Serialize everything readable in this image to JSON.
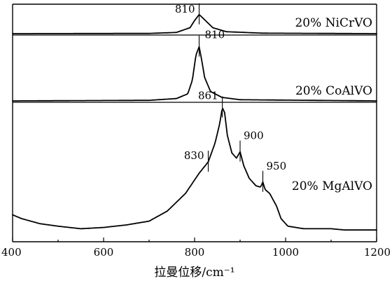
{
  "chart_data": {
    "type": "line",
    "xlabel": "拉曼位移/cm⁻¹",
    "xlim": [
      400,
      1200
    ],
    "xticks": [
      "400",
      "600",
      "800",
      "1000",
      "1200"
    ],
    "xtick_values": [
      400,
      600,
      800,
      1000,
      1200
    ],
    "ylabel": "",
    "grid": false,
    "legend": "none",
    "series": [
      {
        "name": "20% NiCrVO",
        "points": [
          [
            400,
            0.0
          ],
          [
            700,
            0.01
          ],
          [
            760,
            0.05
          ],
          [
            790,
            0.25
          ],
          [
            800,
            0.55
          ],
          [
            810,
            0.8
          ],
          [
            820,
            0.62
          ],
          [
            840,
            0.25
          ],
          [
            870,
            0.08
          ],
          [
            950,
            0.02
          ],
          [
            1200,
            0.0
          ]
        ],
        "peaks": [
          {
            "x": 810,
            "label": "810"
          }
        ]
      },
      {
        "name": "20% CoAlVO",
        "points": [
          [
            400,
            0.0
          ],
          [
            700,
            0.01
          ],
          [
            760,
            0.04
          ],
          [
            785,
            0.12
          ],
          [
            795,
            0.35
          ],
          [
            803,
            0.78
          ],
          [
            810,
            0.92
          ],
          [
            815,
            0.72
          ],
          [
            822,
            0.4
          ],
          [
            835,
            0.16
          ],
          [
            860,
            0.06
          ],
          [
            900,
            0.02
          ],
          [
            1200,
            0.0
          ]
        ],
        "peaks": [
          {
            "x": 810,
            "label": "810"
          }
        ]
      },
      {
        "name": "20% MgAlVO",
        "points": [
          [
            400,
            0.13
          ],
          [
            420,
            0.1
          ],
          [
            460,
            0.06
          ],
          [
            500,
            0.04
          ],
          [
            550,
            0.02
          ],
          [
            600,
            0.03
          ],
          [
            650,
            0.05
          ],
          [
            700,
            0.08
          ],
          [
            740,
            0.16
          ],
          [
            780,
            0.3
          ],
          [
            810,
            0.46
          ],
          [
            830,
            0.55
          ],
          [
            845,
            0.7
          ],
          [
            855,
            0.85
          ],
          [
            861,
            0.98
          ],
          [
            866,
            0.94
          ],
          [
            872,
            0.76
          ],
          [
            882,
            0.62
          ],
          [
            892,
            0.58
          ],
          [
            900,
            0.63
          ],
          [
            908,
            0.52
          ],
          [
            920,
            0.42
          ],
          [
            935,
            0.36
          ],
          [
            945,
            0.35
          ],
          [
            950,
            0.39
          ],
          [
            955,
            0.33
          ],
          [
            965,
            0.3
          ],
          [
            980,
            0.2
          ],
          [
            990,
            0.1
          ],
          [
            1005,
            0.04
          ],
          [
            1040,
            0.02
          ],
          [
            1100,
            0.02
          ],
          [
            1130,
            0.01
          ],
          [
            1200,
            0.01
          ]
        ],
        "peaks": [
          {
            "x": 830,
            "label": "830"
          },
          {
            "x": 861,
            "label": "861"
          },
          {
            "x": 900,
            "label": "900"
          },
          {
            "x": 950,
            "label": "950"
          }
        ]
      }
    ]
  }
}
